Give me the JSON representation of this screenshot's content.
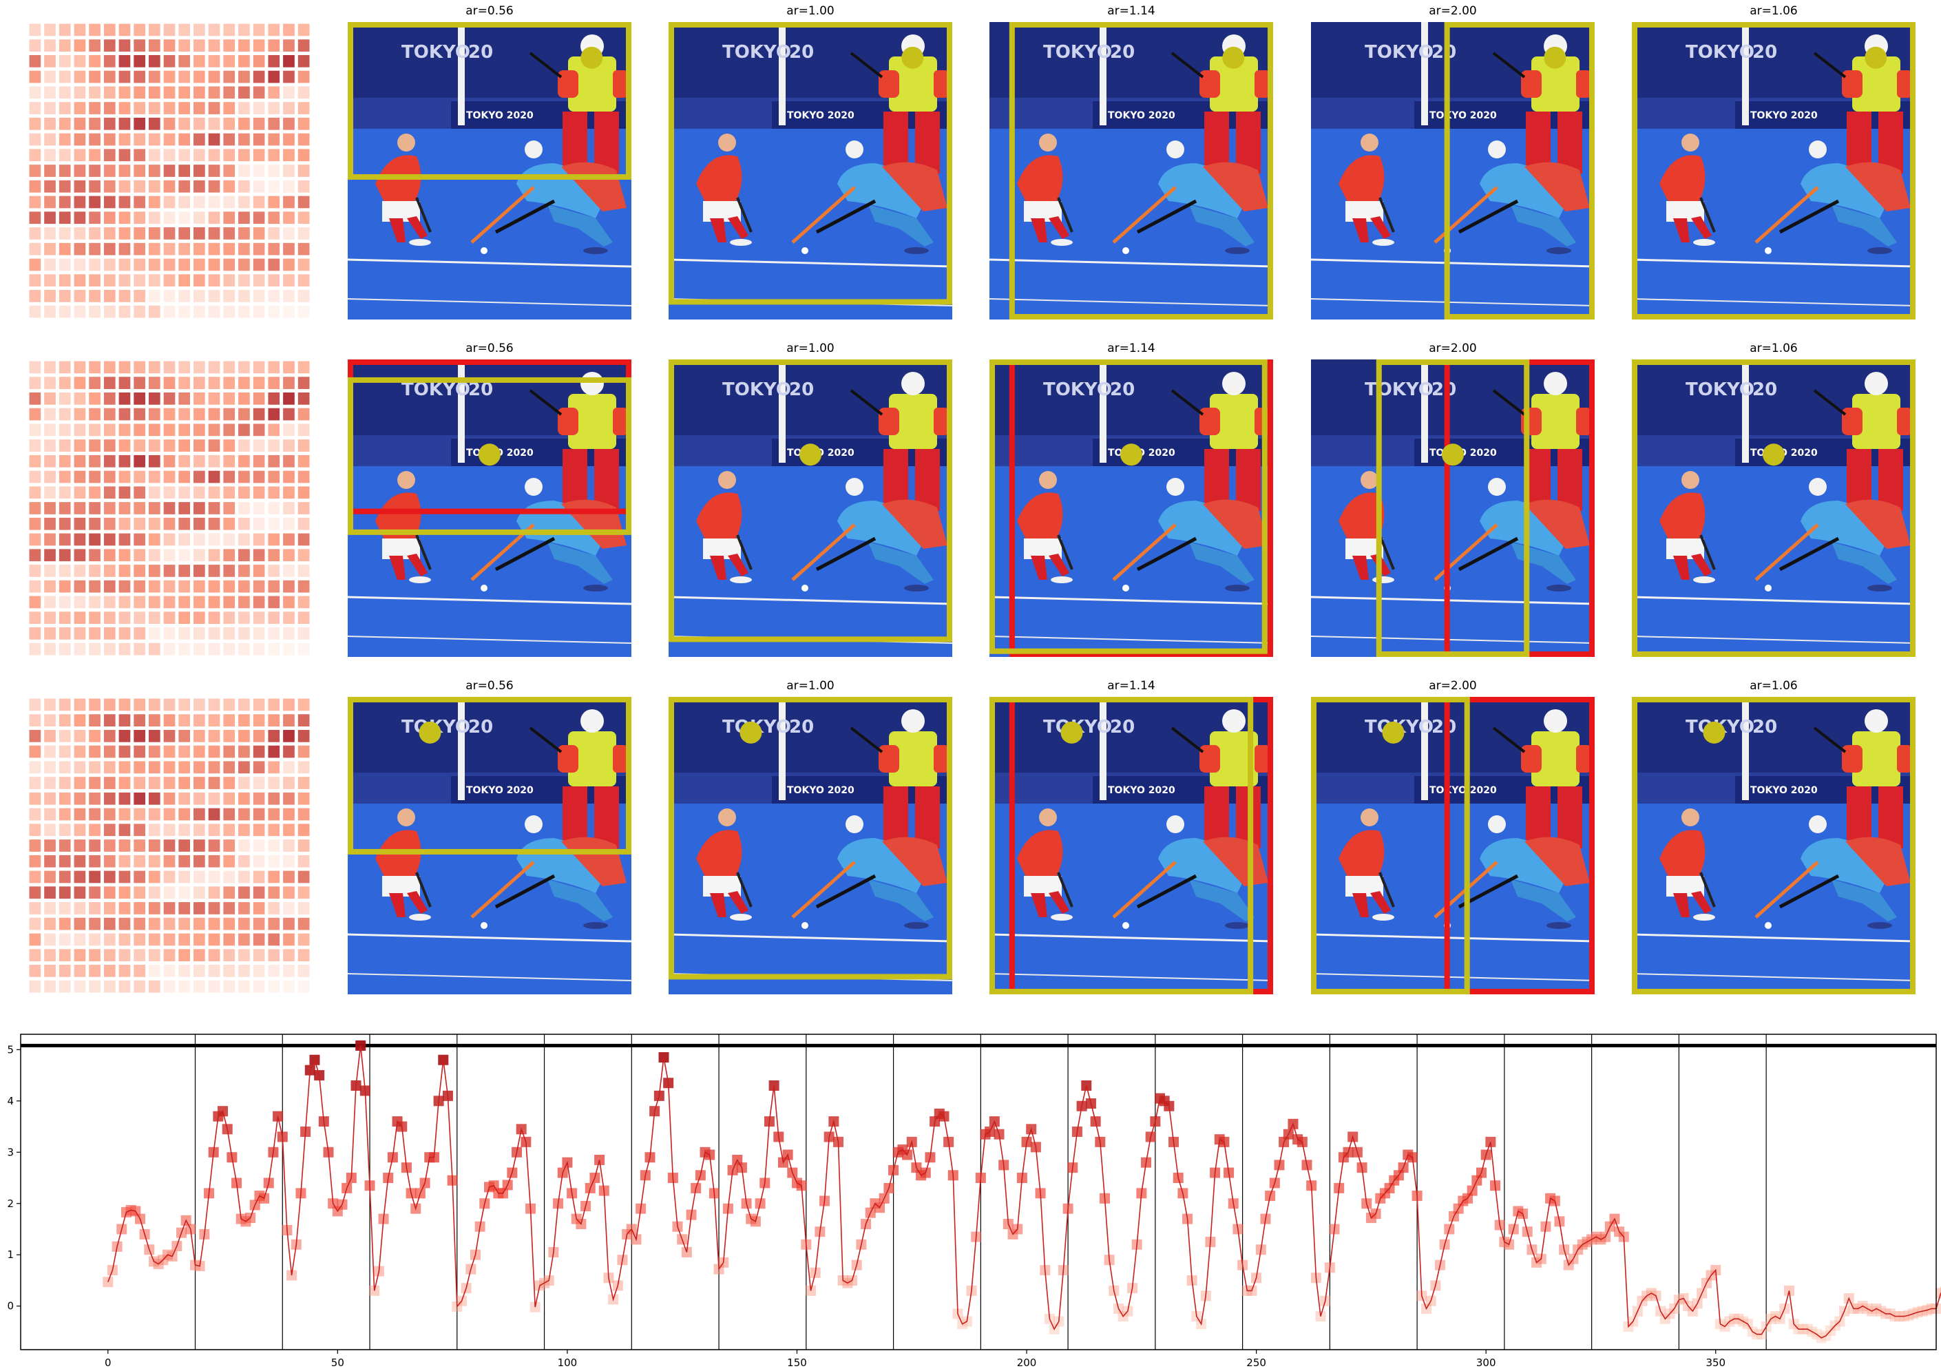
{
  "rows": [
    {
      "panels": [
        {
          "title": "ar=0.56",
          "dot": [
            0.86,
            0.12
          ],
          "boxes": [
            {
              "color": "#c8c01a",
              "rect": [
                0.0,
                0.0,
                1.0,
                0.53
              ]
            }
          ]
        },
        {
          "title": "ar=1.00",
          "dot": [
            0.86,
            0.12
          ],
          "boxes": [
            {
              "color": "#c8c01a",
              "rect": [
                0.0,
                0.0,
                1.0,
                0.95
              ]
            }
          ]
        },
        {
          "title": "ar=1.14",
          "dot": [
            0.86,
            0.12
          ],
          "boxes": [
            {
              "color": "#c8c01a",
              "rect": [
                0.07,
                0.0,
                1.0,
                1.0
              ]
            }
          ]
        },
        {
          "title": "ar=2.00",
          "dot": [
            0.86,
            0.12
          ],
          "boxes": [
            {
              "color": "#c8c01a",
              "rect": [
                0.47,
                0.0,
                1.0,
                1.0
              ]
            }
          ]
        },
        {
          "title": "ar=1.06",
          "dot": [
            0.86,
            0.12
          ],
          "boxes": [
            {
              "color": "#c8c01a",
              "rect": [
                0.0,
                0.0,
                1.0,
                1.0
              ]
            }
          ]
        }
      ]
    },
    {
      "panels": [
        {
          "title": "ar=0.56",
          "dot": [
            0.5,
            0.32
          ],
          "boxes": [
            {
              "color": "#e8171a",
              "rect": [
                0.0,
                0.0,
                1.0,
                0.52
              ]
            },
            {
              "color": "#c8c01a",
              "rect": [
                0.0,
                0.06,
                1.0,
                0.59
              ]
            }
          ]
        },
        {
          "title": "ar=1.00",
          "dot": [
            0.5,
            0.32
          ],
          "boxes": [
            {
              "color": "#c8c01a",
              "rect": [
                0.0,
                0.0,
                1.0,
                0.95
              ]
            }
          ]
        },
        {
          "title": "ar=1.14",
          "dot": [
            0.5,
            0.32
          ],
          "boxes": [
            {
              "color": "#e8171a",
              "rect": [
                0.07,
                0.0,
                1.0,
                1.0
              ]
            },
            {
              "color": "#c8c01a",
              "rect": [
                0.0,
                0.0,
                0.98,
                0.99
              ]
            }
          ]
        },
        {
          "title": "ar=2.00",
          "dot": [
            0.5,
            0.32
          ],
          "boxes": [
            {
              "color": "#e8171a",
              "rect": [
                0.47,
                0.0,
                1.0,
                1.0
              ]
            },
            {
              "color": "#c8c01a",
              "rect": [
                0.23,
                0.0,
                0.77,
                1.0
              ]
            }
          ]
        },
        {
          "title": "ar=1.06",
          "dot": [
            0.5,
            0.32
          ],
          "boxes": [
            {
              "color": "#c8c01a",
              "rect": [
                0.0,
                0.0,
                1.0,
                1.0
              ]
            }
          ]
        }
      ]
    },
    {
      "panels": [
        {
          "title": "ar=0.56",
          "dot": [
            0.29,
            0.12
          ],
          "boxes": [
            {
              "color": "#c8c01a",
              "rect": [
                0.0,
                0.0,
                1.0,
                0.53
              ]
            }
          ]
        },
        {
          "title": "ar=1.00",
          "dot": [
            0.29,
            0.12
          ],
          "boxes": [
            {
              "color": "#c8c01a",
              "rect": [
                0.0,
                0.0,
                1.0,
                0.95
              ]
            }
          ]
        },
        {
          "title": "ar=1.14",
          "dot": [
            0.29,
            0.12
          ],
          "boxes": [
            {
              "color": "#e8171a",
              "rect": [
                0.07,
                0.0,
                1.0,
                1.0
              ]
            },
            {
              "color": "#c8c01a",
              "rect": [
                0.0,
                0.0,
                0.93,
                1.0
              ]
            }
          ]
        },
        {
          "title": "ar=2.00",
          "dot": [
            0.29,
            0.12
          ],
          "boxes": [
            {
              "color": "#e8171a",
              "rect": [
                0.47,
                0.0,
                1.0,
                1.0
              ]
            },
            {
              "color": "#c8c01a",
              "rect": [
                0.0,
                0.0,
                0.56,
                1.0
              ]
            }
          ]
        },
        {
          "title": "ar=1.06",
          "dot": [
            0.29,
            0.12
          ],
          "boxes": [
            {
              "color": "#c8c01a",
              "rect": [
                0.0,
                0.0,
                1.0,
                1.0
              ]
            }
          ]
        }
      ]
    }
  ],
  "photo_labels": {
    "banner_1": "TOKYO",
    "banner_2": "20",
    "board": "TOKYO 2020"
  },
  "colors": {
    "accent_yellow": "#c8c01a",
    "accent_red": "#e8171a",
    "line": "#c8201e"
  },
  "chart_data": {
    "type": "line",
    "title": "",
    "xlabel": "",
    "ylabel": "",
    "xlim": [
      -19,
      398
    ],
    "ylim": [
      -0.85,
      5.3
    ],
    "xticks": [
      0,
      50,
      100,
      150,
      200,
      250,
      300,
      350
    ],
    "yticks": [
      0,
      1,
      2,
      3,
      4,
      5
    ],
    "hline": 5.08,
    "vlines": [
      19,
      38,
      57,
      76,
      95,
      114,
      133,
      152,
      171,
      190,
      209,
      228,
      247,
      266,
      285,
      304,
      323,
      342,
      361
    ],
    "series": [
      {
        "name": "",
        "x_start": 0,
        "x_step": 1,
        "marker": "square",
        "values": [
          0.47,
          0.7,
          1.16,
          1.5,
          1.83,
          1.87,
          1.85,
          1.7,
          1.4,
          1.1,
          0.87,
          0.82,
          0.9,
          1.0,
          0.97,
          1.17,
          1.43,
          1.67,
          1.5,
          0.8,
          0.78,
          1.4,
          2.2,
          3.0,
          3.7,
          3.8,
          3.45,
          2.9,
          2.4,
          1.7,
          1.65,
          1.72,
          1.97,
          2.15,
          2.1,
          2.4,
          3.0,
          3.7,
          3.3,
          1.48,
          0.6,
          1.2,
          2.2,
          3.4,
          4.6,
          4.8,
          4.5,
          3.6,
          3.0,
          2.0,
          1.85,
          1.98,
          2.3,
          2.5,
          4.3,
          5.08,
          4.2,
          2.35,
          0.3,
          0.68,
          1.7,
          2.5,
          2.9,
          3.6,
          3.5,
          2.7,
          2.2,
          1.9,
          2.2,
          2.4,
          2.9,
          2.9,
          4.0,
          4.8,
          4.1,
          2.45,
          -0.01,
          0.1,
          0.35,
          0.72,
          1.0,
          1.55,
          2.0,
          2.32,
          2.35,
          2.2,
          2.2,
          2.36,
          2.6,
          3.0,
          3.45,
          3.2,
          1.9,
          -0.02,
          0.4,
          0.45,
          0.5,
          1.05,
          2.0,
          2.6,
          2.8,
          2.2,
          1.7,
          1.6,
          1.95,
          2.3,
          2.5,
          2.85,
          2.25,
          0.55,
          0.13,
          0.4,
          0.9,
          1.4,
          1.5,
          1.3,
          1.9,
          2.55,
          2.9,
          3.8,
          4.1,
          4.85,
          4.35,
          2.5,
          1.55,
          1.3,
          1.05,
          1.78,
          2.3,
          2.55,
          3.0,
          2.95,
          2.2,
          0.72,
          0.85,
          1.9,
          2.65,
          2.85,
          2.7,
          2.0,
          1.7,
          1.65,
          2.0,
          2.4,
          3.6,
          4.3,
          3.3,
          2.8,
          2.95,
          2.6,
          2.4,
          2.35,
          1.2,
          0.3,
          0.65,
          1.45,
          2.05,
          3.3,
          3.6,
          3.2,
          0.5,
          0.45,
          0.5,
          0.8,
          1.2,
          1.6,
          1.82,
          2.0,
          1.92,
          2.1,
          2.3,
          2.65,
          3.0,
          3.05,
          2.95,
          3.2,
          2.7,
          2.55,
          2.6,
          2.9,
          3.6,
          3.75,
          3.7,
          3.2,
          2.55,
          -0.15,
          -0.35,
          -0.3,
          0.3,
          1.35,
          2.5,
          3.35,
          3.4,
          3.6,
          3.35,
          2.75,
          1.6,
          1.4,
          1.5,
          2.5,
          3.2,
          3.45,
          3.1,
          2.2,
          0.7,
          -0.25,
          -0.45,
          -0.3,
          0.7,
          1.9,
          2.7,
          3.4,
          3.9,
          4.3,
          3.95,
          3.6,
          3.2,
          2.1,
          0.9,
          0.3,
          -0.05,
          -0.2,
          -0.1,
          0.35,
          1.2,
          2.2,
          2.8,
          3.3,
          3.6,
          4.05,
          4.0,
          3.9,
          3.2,
          2.5,
          2.2,
          1.7,
          0.5,
          -0.2,
          -0.35,
          0.2,
          1.25,
          2.6,
          3.25,
          3.2,
          2.6,
          2.0,
          1.5,
          0.8,
          0.3,
          0.3,
          0.55,
          1.1,
          1.7,
          2.15,
          2.4,
          2.75,
          3.2,
          3.35,
          3.55,
          3.25,
          3.2,
          2.75,
          2.35,
          0.55,
          -0.2,
          0.1,
          0.75,
          1.5,
          2.3,
          2.9,
          3.0,
          3.3,
          3.0,
          2.7,
          2.0,
          1.72,
          1.8,
          2.1,
          2.2,
          2.3,
          2.45,
          2.55,
          2.7,
          2.95,
          2.9,
          2.15,
          0.2,
          -0.05,
          0.1,
          0.4,
          0.8,
          1.2,
          1.5,
          1.75,
          1.9,
          2.05,
          2.1,
          2.25,
          2.45,
          2.6,
          2.95,
          3.2,
          2.35,
          1.58,
          1.25,
          1.2,
          1.5,
          1.85,
          1.8,
          1.45,
          1.1,
          0.85,
          0.92,
          1.55,
          2.1,
          2.05,
          1.65,
          1.1,
          0.8,
          0.92,
          1.1,
          1.2,
          1.25,
          1.3,
          1.35,
          1.3,
          1.35,
          1.55,
          1.7,
          1.45,
          1.35,
          -0.4,
          -0.3,
          -0.1,
          0.1,
          0.2,
          0.25,
          0.2,
          -0.1,
          -0.25,
          -0.15,
          -0.05,
          0.12,
          0.15,
          0.0,
          -0.1,
          0.05,
          0.25,
          0.45,
          0.6,
          0.7,
          -0.35,
          -0.4,
          -0.3,
          -0.25,
          -0.25,
          -0.3,
          -0.35,
          -0.5,
          -0.55,
          -0.55,
          -0.4,
          -0.25,
          -0.2,
          -0.25,
          -0.05,
          0.3,
          -0.35,
          -0.45,
          -0.45,
          -0.45,
          -0.5,
          -0.55,
          -0.62,
          -0.58,
          -0.48,
          -0.38,
          -0.3,
          -0.1,
          0.15,
          -0.05,
          -0.05,
          0.0,
          -0.05,
          -0.1,
          -0.05,
          -0.1,
          -0.15,
          -0.15,
          -0.2,
          -0.2,
          -0.2,
          -0.18,
          -0.15,
          -0.12,
          -0.1,
          -0.08,
          -0.05,
          -0.05,
          0.25,
          0.28
        ]
      }
    ]
  }
}
